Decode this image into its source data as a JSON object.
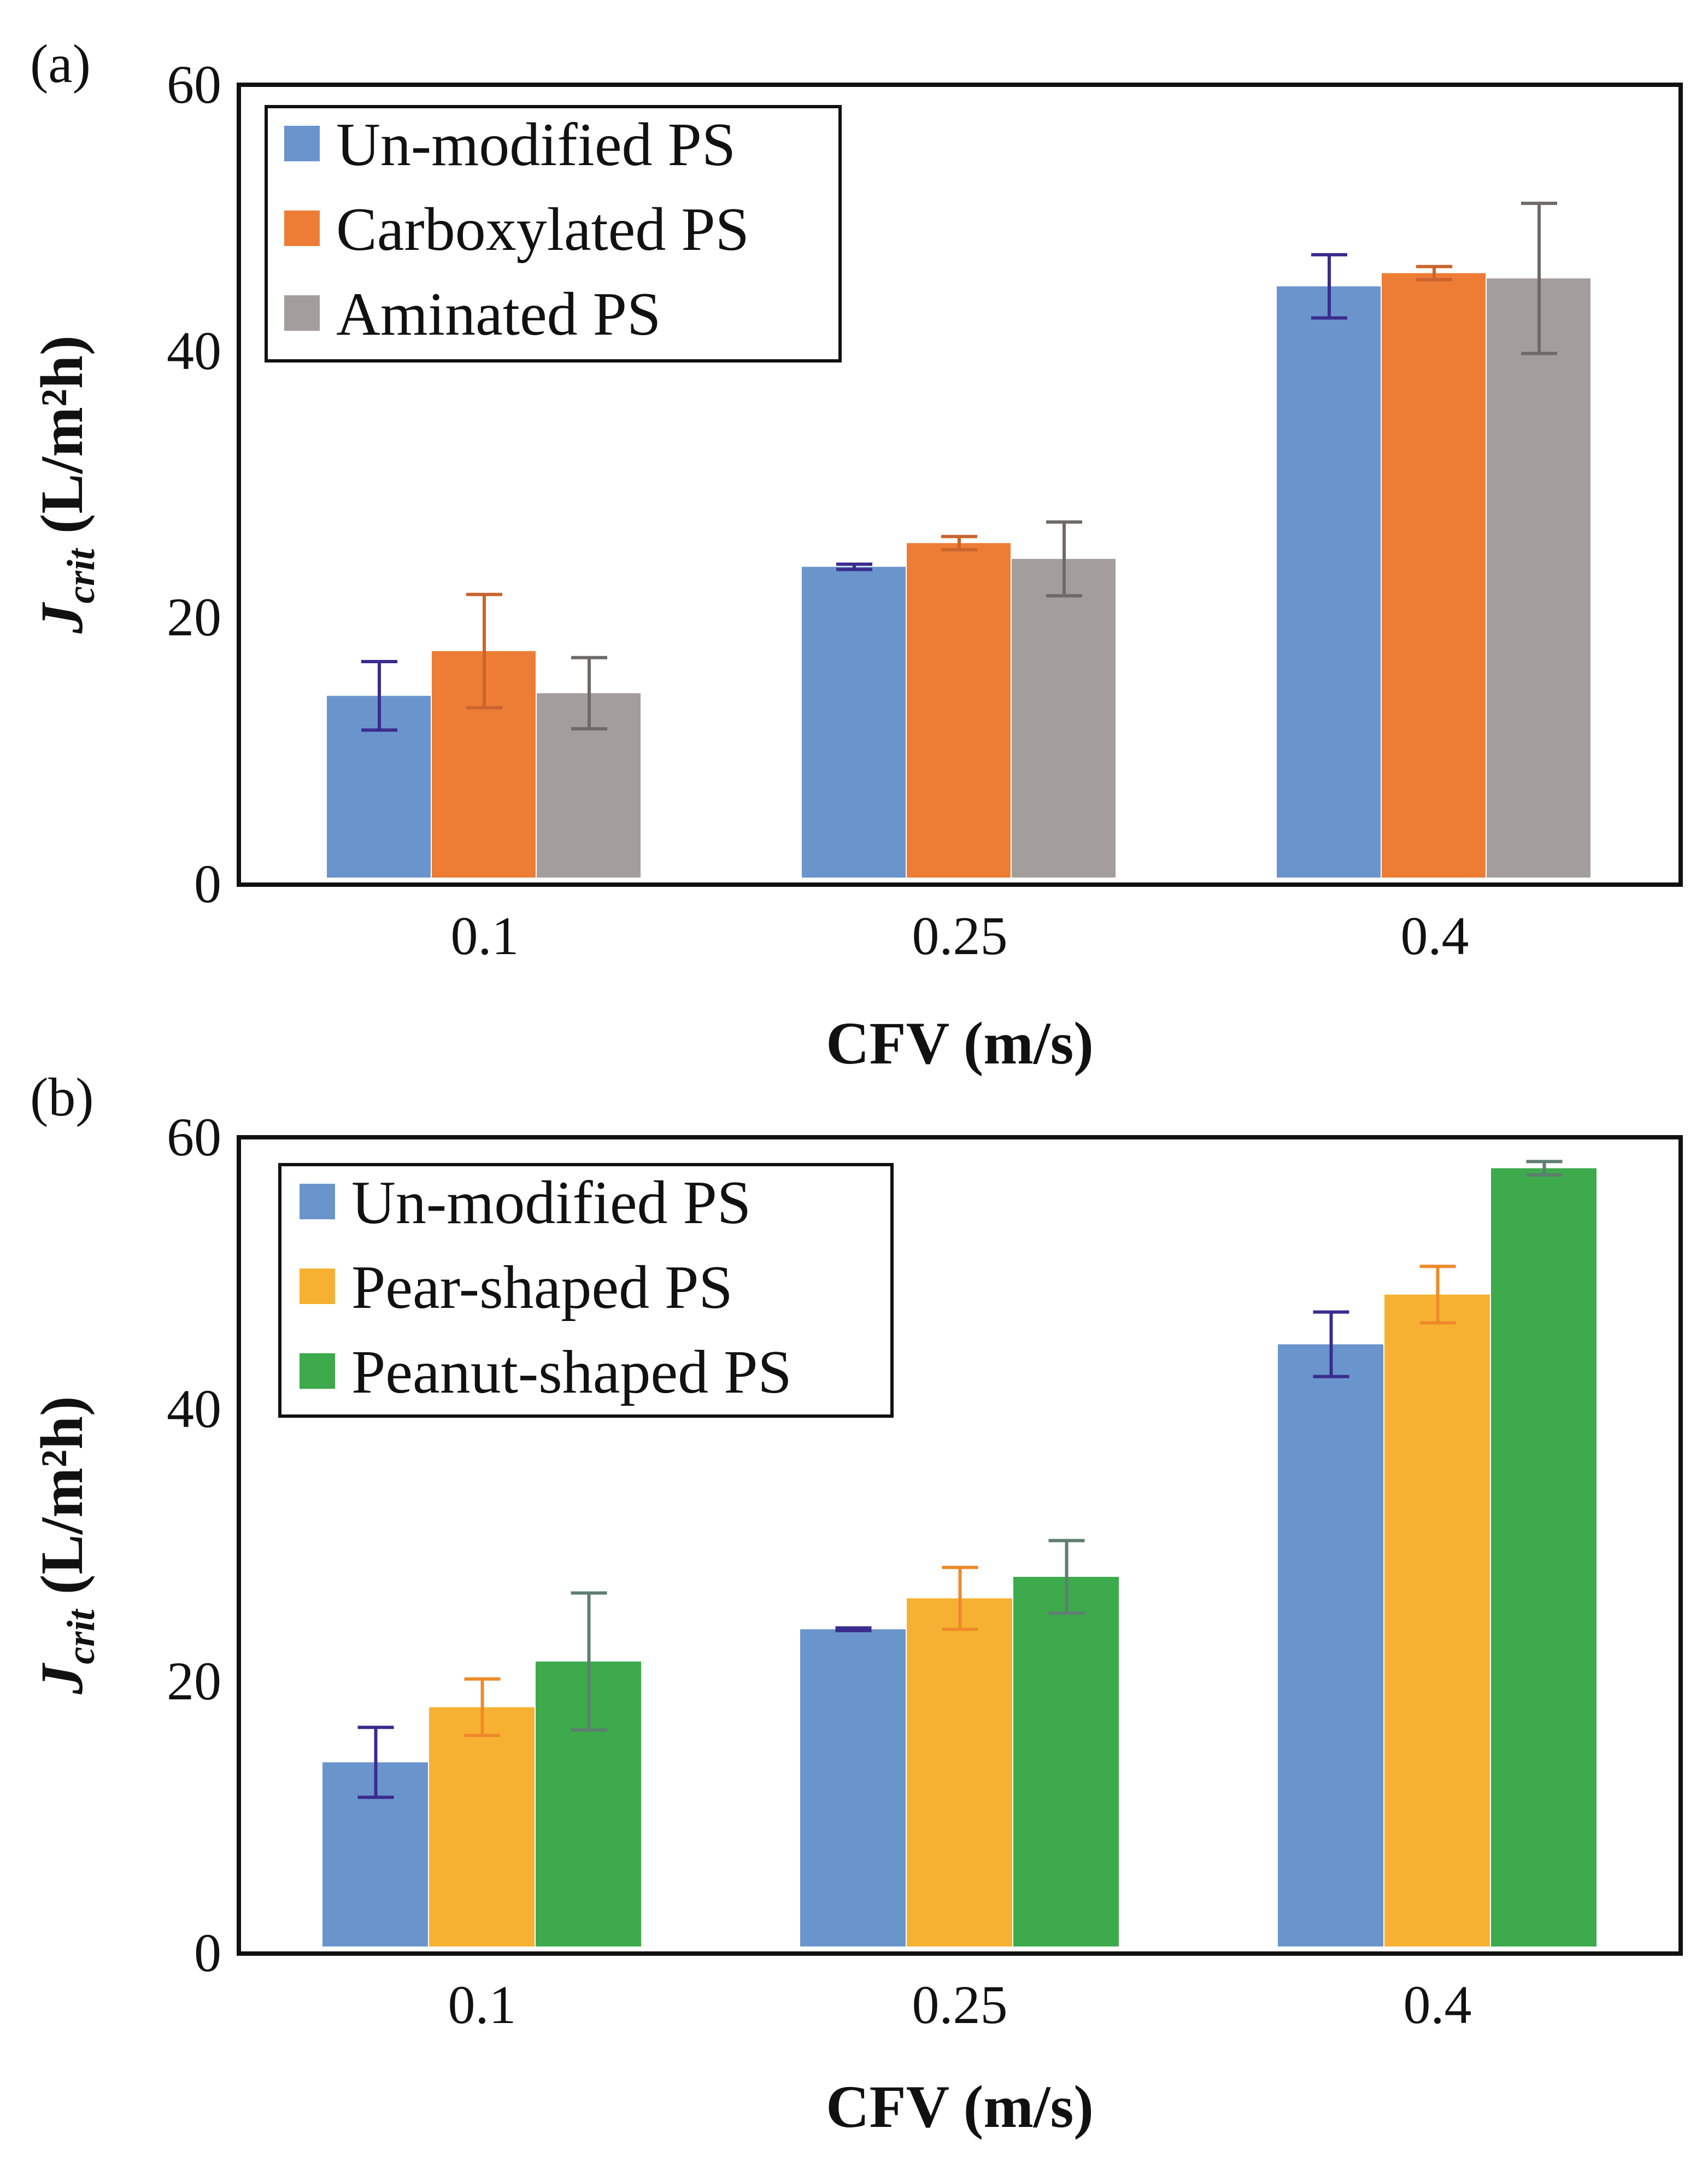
{
  "chart_data": [
    {
      "panel_label": "(a)",
      "type": "bar",
      "categories": [
        "0.1",
        "0.25",
        "0.4"
      ],
      "xlabel": "CFV (m/s)",
      "ylabel": {
        "symbol": "J",
        "subscript": "crit",
        "rest": " (L/m²h)"
      },
      "ylim": [
        0,
        60
      ],
      "yticks": [
        "0",
        "20",
        "40",
        "60"
      ],
      "legend_position": "top-left",
      "series": [
        {
          "name": "Un-modified PS",
          "color": "#6A95CC",
          "error_color": "#3A2C8E",
          "values": [
            13.8,
            23.6,
            44.9
          ],
          "errors": [
            2.6,
            0.2,
            2.4
          ]
        },
        {
          "name": "Carboxylated PS",
          "color": "#ED7D35",
          "error_color": "#C9642E",
          "values": [
            17.2,
            25.4,
            45.9
          ],
          "errors": [
            4.3,
            0.5,
            0.5
          ]
        },
        {
          "name": "Aminated PS",
          "color": "#A39E9B",
          "error_color": "#6E6A67",
          "values": [
            14.0,
            24.2,
            45.5
          ],
          "errors": [
            2.7,
            2.8,
            5.7
          ]
        }
      ]
    },
    {
      "panel_label": "(b)",
      "type": "bar",
      "categories": [
        "0.1",
        "0.25",
        "0.4"
      ],
      "xlabel": "CFV (m/s)",
      "ylabel": {
        "symbol": "J",
        "subscript": "crit",
        "rest": " (L/m²h)"
      },
      "ylim": [
        0,
        60
      ],
      "yticks": [
        "0",
        "20",
        "40",
        "60"
      ],
      "legend_position": "top-left",
      "series": [
        {
          "name": "Un-modified PS",
          "color": "#6A95CC",
          "error_color": "#3A2C8E",
          "values": [
            13.7,
            23.6,
            44.8
          ],
          "errors": [
            2.6,
            0.1,
            2.4
          ]
        },
        {
          "name": "Pear-shaped PS",
          "color": "#F7B132",
          "error_color": "#EE8A2A",
          "values": [
            17.8,
            25.9,
            48.5
          ],
          "errors": [
            2.1,
            2.3,
            2.1
          ]
        },
        {
          "name": "Peanut-shaped PS",
          "color": "#3DAA4C",
          "error_color": "#5E7E70",
          "values": [
            21.2,
            27.5,
            57.9
          ],
          "errors": [
            5.1,
            2.7,
            0.5
          ]
        }
      ]
    }
  ]
}
